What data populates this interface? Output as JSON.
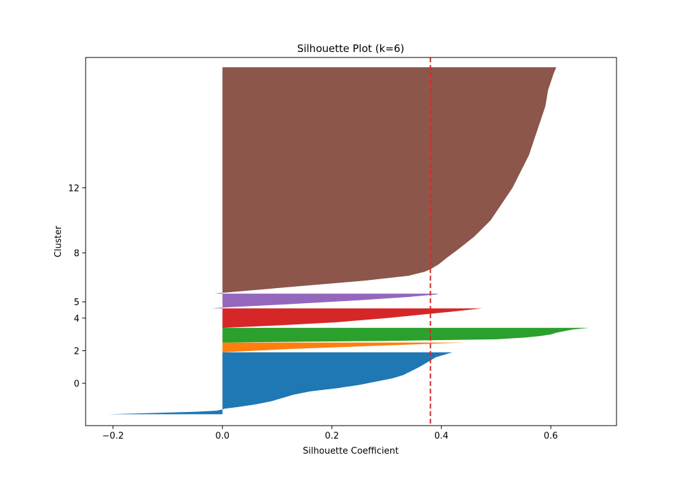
{
  "chart_data": {
    "type": "area",
    "title": "Silhouette Plot (k=6)",
    "xlabel": "Silhouette Coefficient",
    "ylabel": "Cluster",
    "xlim": [
      -0.25,
      0.72
    ],
    "ylim": [
      -2.6,
      20.0
    ],
    "xticks": [
      -0.2,
      0.0,
      0.2,
      0.4,
      0.6
    ],
    "xtick_labels": [
      "−0.2",
      "0.0",
      "0.2",
      "0.4",
      "0.6"
    ],
    "yticks": [
      0,
      2,
      4,
      5,
      8,
      12
    ],
    "ytick_labels": [
      "0",
      "2",
      "4",
      "5",
      "8",
      "12"
    ],
    "grid": false,
    "reference_line": {
      "x": 0.38,
      "style": "dashed",
      "color": "#d62728"
    },
    "clusters": [
      {
        "id": 0,
        "color": "#1f77b4",
        "y_range": [
          -1.9,
          1.9
        ],
        "profile": [
          [
            -1.9,
            -0.21
          ],
          [
            -1.82,
            -0.12
          ],
          [
            -1.75,
            -0.05
          ],
          [
            -1.68,
            -0.01
          ],
          [
            -1.6,
            0.0
          ],
          [
            -1.56,
            0.004
          ],
          [
            -1.45,
            0.03
          ],
          [
            -1.3,
            0.06
          ],
          [
            -1.1,
            0.09
          ],
          [
            -0.9,
            0.11
          ],
          [
            -0.7,
            0.13
          ],
          [
            -0.5,
            0.16
          ],
          [
            -0.3,
            0.21
          ],
          [
            -0.1,
            0.25
          ],
          [
            0.1,
            0.28
          ],
          [
            0.3,
            0.31
          ],
          [
            0.5,
            0.33
          ],
          [
            0.75,
            0.345
          ],
          [
            1.0,
            0.36
          ],
          [
            1.3,
            0.375
          ],
          [
            1.6,
            0.39
          ],
          [
            1.75,
            0.405
          ],
          [
            1.9,
            0.42
          ]
        ]
      },
      {
        "id": 2,
        "color": "#ff7f0e",
        "y_range": [
          1.9,
          2.5
        ],
        "profile": [
          [
            1.9,
            0.0
          ],
          [
            2.1,
            0.12
          ],
          [
            2.3,
            0.28
          ],
          [
            2.45,
            0.4
          ],
          [
            2.5,
            0.445
          ]
        ]
      },
      {
        "id": 4,
        "color": "#2ca02c",
        "y_range": [
          2.5,
          3.4
        ],
        "profile": [
          [
            2.5,
            0.0
          ],
          [
            2.6,
            0.3
          ],
          [
            2.7,
            0.5
          ],
          [
            2.8,
            0.55
          ],
          [
            2.9,
            0.58
          ],
          [
            3.0,
            0.6
          ],
          [
            3.1,
            0.61
          ],
          [
            3.2,
            0.625
          ],
          [
            3.3,
            0.64
          ],
          [
            3.4,
            0.67
          ]
        ]
      },
      {
        "id": 5,
        "color": "#d62728",
        "y_range": [
          3.4,
          4.6
        ],
        "profile": [
          [
            3.4,
            0.0
          ],
          [
            3.55,
            0.1
          ],
          [
            3.75,
            0.21
          ],
          [
            4.0,
            0.3
          ],
          [
            4.2,
            0.36
          ],
          [
            4.4,
            0.42
          ],
          [
            4.6,
            0.475
          ]
        ]
      },
      {
        "id": 8,
        "color": "#9467bd",
        "y_range": [
          4.6,
          5.5
        ],
        "profile": [
          [
            4.6,
            -0.02
          ],
          [
            4.65,
            0.0
          ],
          [
            4.85,
            0.12
          ],
          [
            5.1,
            0.25
          ],
          [
            5.3,
            0.34
          ],
          [
            5.45,
            0.39
          ],
          [
            5.5,
            0.395
          ]
        ]
      },
      {
        "id": 12,
        "color": "#8c564b",
        "y_range": [
          5.5,
          19.4
        ],
        "profile": [
          [
            5.5,
            -0.015
          ],
          [
            5.55,
            0.0
          ],
          [
            5.9,
            0.12
          ],
          [
            6.3,
            0.26
          ],
          [
            6.6,
            0.34
          ],
          [
            6.85,
            0.37
          ],
          [
            7.0,
            0.38
          ],
          [
            7.3,
            0.395
          ],
          [
            7.7,
            0.41
          ],
          [
            8.2,
            0.43
          ],
          [
            9.0,
            0.46
          ],
          [
            10.0,
            0.49
          ],
          [
            11.0,
            0.51
          ],
          [
            12.0,
            0.53
          ],
          [
            13.0,
            0.545
          ],
          [
            14.0,
            0.56
          ],
          [
            15.0,
            0.57
          ],
          [
            16.0,
            0.58
          ],
          [
            17.0,
            0.59
          ],
          [
            18.0,
            0.595
          ],
          [
            19.0,
            0.605
          ],
          [
            19.4,
            0.61
          ]
        ]
      }
    ]
  }
}
